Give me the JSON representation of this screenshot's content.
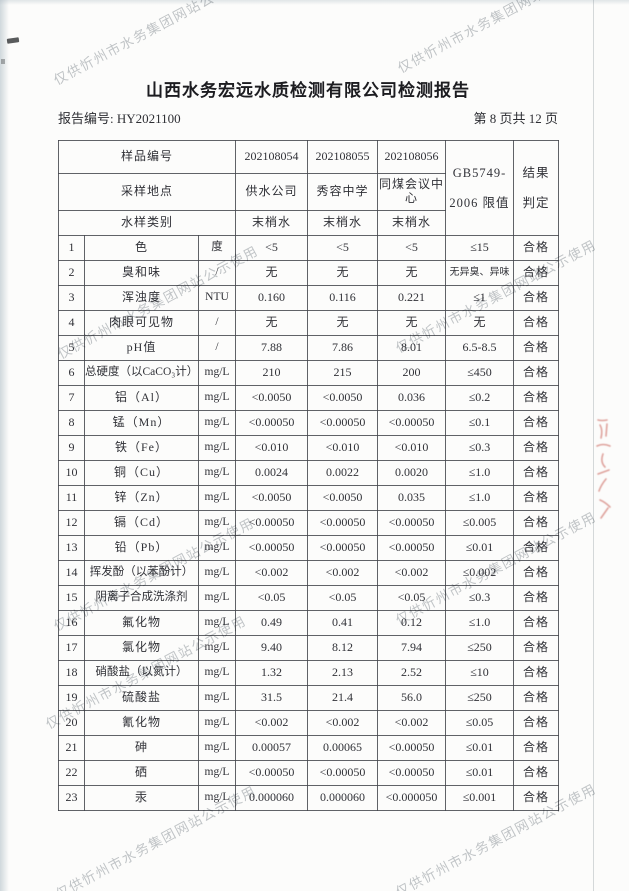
{
  "page": {
    "title": "山西水务宏远水质检测有限公司检测报告",
    "report_no": "报告编号: HY2021100",
    "page_info": "第 8 页共 12 页"
  },
  "watermark": {
    "text": "仅供忻州市水务集团网站公示使用"
  },
  "colors": {
    "watermark_gray": "#989ea3",
    "seal_red": "#c24b40",
    "paper": "#fcfcfb"
  },
  "table": {
    "header": {
      "sample_no_label": "样品编号",
      "sample_site_label": "采样地点",
      "sample_type_label": "水样类别",
      "sample_nos": [
        "202108054",
        "202108055",
        "202108056"
      ],
      "sample_sites": [
        "供水公司",
        "秀容中学",
        "同煤会议中心"
      ],
      "sample_types": [
        "末梢水",
        "末梢水",
        "末梢水"
      ],
      "limit_line1": "GB5749-",
      "limit_line2": "2006 限值",
      "result_line1": "结果",
      "result_line2": "判定"
    },
    "rows": [
      {
        "no": "1",
        "item": "色",
        "unit": "度",
        "v1": "<5",
        "v2": "<5",
        "v3": "<5",
        "limit": "≤15",
        "result": "合格"
      },
      {
        "no": "2",
        "item": "臭和味",
        "unit": "/",
        "v1": "无",
        "v2": "无",
        "v3": "无",
        "limit": "无异臭、异味",
        "result": "合格"
      },
      {
        "no": "3",
        "item": "浑浊度",
        "unit": "NTU",
        "v1": "0.160",
        "v2": "0.116",
        "v3": "0.221",
        "limit": "≤1",
        "result": "合格"
      },
      {
        "no": "4",
        "item": "肉眼可见物",
        "unit": "/",
        "v1": "无",
        "v2": "无",
        "v3": "无",
        "limit": "无",
        "result": "合格"
      },
      {
        "no": "5",
        "item": "pH值",
        "unit": "/",
        "v1": "7.88",
        "v2": "7.86",
        "v3": "8.01",
        "limit": "6.5-8.5",
        "result": "合格"
      },
      {
        "no": "6",
        "item": "总硬度（以CaCO₃计）",
        "unit": "mg/L",
        "v1": "210",
        "v2": "215",
        "v3": "200",
        "limit": "≤450",
        "result": "合格"
      },
      {
        "no": "7",
        "item": "铝（Al）",
        "unit": "mg/L",
        "v1": "<0.0050",
        "v2": "<0.0050",
        "v3": "0.036",
        "limit": "≤0.2",
        "result": "合格"
      },
      {
        "no": "8",
        "item": "锰（Mn）",
        "unit": "mg/L",
        "v1": "<0.00050",
        "v2": "<0.00050",
        "v3": "<0.00050",
        "limit": "≤0.1",
        "result": "合格"
      },
      {
        "no": "9",
        "item": "铁（Fe）",
        "unit": "mg/L",
        "v1": "<0.010",
        "v2": "<0.010",
        "v3": "<0.010",
        "limit": "≤0.3",
        "result": "合格"
      },
      {
        "no": "10",
        "item": "铜（Cu）",
        "unit": "mg/L",
        "v1": "0.0024",
        "v2": "0.0022",
        "v3": "0.0020",
        "limit": "≤1.0",
        "result": "合格"
      },
      {
        "no": "11",
        "item": "锌（Zn）",
        "unit": "mg/L",
        "v1": "<0.0050",
        "v2": "<0.0050",
        "v3": "0.035",
        "limit": "≤1.0",
        "result": "合格"
      },
      {
        "no": "12",
        "item": "镉（Cd）",
        "unit": "mg/L",
        "v1": "<0.00050",
        "v2": "<0.00050",
        "v3": "<0.00050",
        "limit": "≤0.005",
        "result": "合格"
      },
      {
        "no": "13",
        "item": "铅（Pb）",
        "unit": "mg/L",
        "v1": "<0.00050",
        "v2": "<0.00050",
        "v3": "<0.00050",
        "limit": "≤0.01",
        "result": "合格"
      },
      {
        "no": "14",
        "item": "挥发酚（以苯酚计）",
        "unit": "mg/L",
        "v1": "<0.002",
        "v2": "<0.002",
        "v3": "<0.002",
        "limit": "≤0.002",
        "result": "合格"
      },
      {
        "no": "15",
        "item": "阴离子合成洗涤剂",
        "unit": "mg/L",
        "v1": "<0.05",
        "v2": "<0.05",
        "v3": "<0.05",
        "limit": "≤0.3",
        "result": "合格"
      },
      {
        "no": "16",
        "item": "氟化物",
        "unit": "mg/L",
        "v1": "0.49",
        "v2": "0.41",
        "v3": "0.12",
        "limit": "≤1.0",
        "result": "合格"
      },
      {
        "no": "17",
        "item": "氯化物",
        "unit": "mg/L",
        "v1": "9.40",
        "v2": "8.12",
        "v3": "7.94",
        "limit": "≤250",
        "result": "合格"
      },
      {
        "no": "18",
        "item": "硝酸盐（以氮计）",
        "unit": "mg/L",
        "v1": "1.32",
        "v2": "2.13",
        "v3": "2.52",
        "limit": "≤10",
        "result": "合格"
      },
      {
        "no": "19",
        "item": "硫酸盐",
        "unit": "mg/L",
        "v1": "31.5",
        "v2": "21.4",
        "v3": "56.0",
        "limit": "≤250",
        "result": "合格"
      },
      {
        "no": "20",
        "item": "氰化物",
        "unit": "mg/L",
        "v1": "<0.002",
        "v2": "<0.002",
        "v3": "<0.002",
        "limit": "≤0.05",
        "result": "合格"
      },
      {
        "no": "21",
        "item": "砷",
        "unit": "mg/L",
        "v1": "0.00057",
        "v2": "0.00065",
        "v3": "<0.00050",
        "limit": "≤0.01",
        "result": "合格"
      },
      {
        "no": "22",
        "item": "硒",
        "unit": "mg/L",
        "v1": "<0.00050",
        "v2": "<0.00050",
        "v3": "<0.00050",
        "limit": "≤0.01",
        "result": "合格"
      },
      {
        "no": "23",
        "item": "汞",
        "unit": "mg/L",
        "v1": "0.000060",
        "v2": "0.000060",
        "v3": "<0.000050",
        "limit": "≤0.001",
        "result": "合格"
      }
    ]
  }
}
